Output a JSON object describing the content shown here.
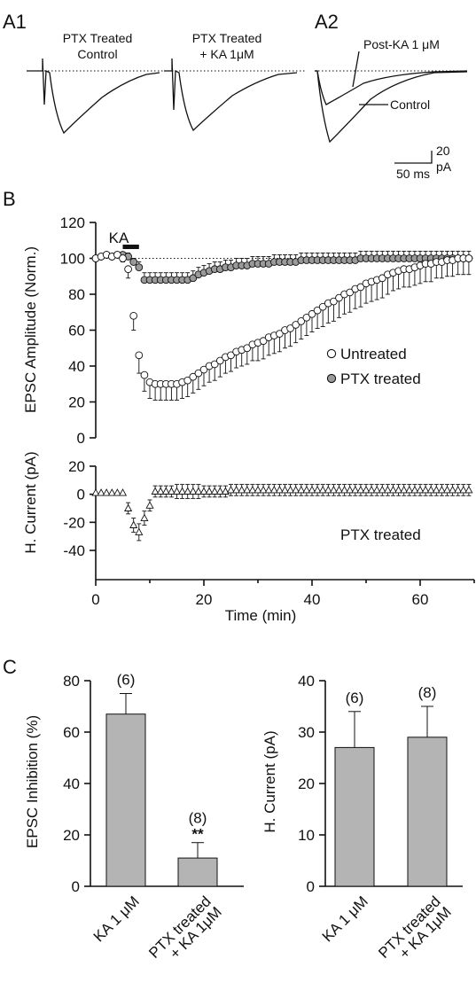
{
  "panels": {
    "a1": "A1",
    "a2": "A2",
    "b": "B",
    "c": "C"
  },
  "traces": {
    "a1_left_label": [
      "PTX Treated",
      "Control"
    ],
    "a1_right_label": [
      "PTX Treated",
      "+ KA 1μM"
    ],
    "a2_post_label": "Post-KA 1 μM",
    "a2_control_label": "Control",
    "scale_y_value": "20",
    "scale_y_unit": "pA",
    "scale_x": "50 ms"
  },
  "colors": {
    "untreated_fill": "#ffffff",
    "ptx_fill": "#9a9a9a",
    "bar_fill": "#b4b4b4",
    "stroke": "#111111"
  },
  "chart_data": [
    {
      "type": "scatter",
      "title": "",
      "xlabel": "",
      "ylabel": "EPSC Amplitude (Norm.)",
      "ylim": [
        0,
        120
      ],
      "yticks": [
        "0",
        "20",
        "40",
        "60",
        "80",
        "100",
        "120"
      ],
      "xlim": [
        0,
        70
      ],
      "reference_line": 100,
      "drug_bar": {
        "label": "KA",
        "from": 5,
        "to": 8
      },
      "legend_position": "right-middle",
      "series": [
        {
          "name": "Untreated",
          "marker": "open-circle",
          "x": [
            0,
            1,
            2,
            3,
            4,
            5,
            6,
            7,
            8,
            9,
            10,
            11,
            12,
            13,
            14,
            15,
            16,
            17,
            18,
            19,
            20,
            21,
            22,
            23,
            24,
            25,
            26,
            27,
            28,
            29,
            30,
            31,
            32,
            33,
            34,
            35,
            36,
            37,
            38,
            39,
            40,
            41,
            42,
            43,
            44,
            45,
            46,
            47,
            48,
            49,
            50,
            51,
            52,
            53,
            54,
            55,
            56,
            57,
            58,
            59,
            60,
            61,
            62,
            63,
            64,
            65,
            66,
            67,
            68,
            69
          ],
          "y": [
            100,
            101,
            102,
            101,
            102,
            100,
            94,
            68,
            46,
            35,
            31,
            30,
            30,
            30,
            30,
            30,
            31,
            32,
            34,
            36,
            38,
            40,
            41,
            43,
            45,
            46,
            48,
            49,
            50,
            52,
            53,
            54,
            56,
            57,
            58,
            60,
            61,
            63,
            65,
            67,
            69,
            71,
            73,
            75,
            76,
            78,
            80,
            81,
            83,
            84,
            86,
            87,
            88,
            89,
            91,
            92,
            93,
            94,
            94,
            95,
            96,
            97,
            97,
            98,
            98,
            99,
            99,
            100,
            100,
            100
          ],
          "error": [
            1,
            1,
            1,
            1,
            1,
            2,
            5,
            8,
            10,
            9,
            9,
            9,
            9,
            9,
            9,
            9,
            9,
            9,
            9,
            9,
            9,
            9,
            9,
            9,
            9,
            9,
            9,
            9,
            9,
            9,
            10,
            10,
            10,
            10,
            10,
            10,
            10,
            10,
            10,
            10,
            10,
            10,
            11,
            11,
            11,
            11,
            11,
            11,
            11,
            11,
            11,
            11,
            11,
            11,
            11,
            10,
            10,
            10,
            10,
            10,
            10,
            10,
            10,
            9,
            9,
            9,
            9,
            9,
            9,
            9
          ]
        },
        {
          "name": "PTX treated",
          "marker": "filled-circle",
          "x": [
            0,
            1,
            2,
            3,
            4,
            5,
            6,
            7,
            8,
            9,
            10,
            11,
            12,
            13,
            14,
            15,
            16,
            17,
            18,
            19,
            20,
            21,
            22,
            23,
            24,
            25,
            26,
            27,
            28,
            29,
            30,
            31,
            32,
            33,
            34,
            35,
            36,
            37,
            38,
            39,
            40,
            41,
            42,
            43,
            44,
            45,
            46,
            47,
            48,
            49,
            50,
            51,
            52,
            53,
            54,
            55,
            56,
            57,
            58,
            59,
            60,
            61,
            62,
            63,
            64,
            65,
            66,
            67,
            68,
            69
          ],
          "y": [
            100,
            101,
            102,
            101,
            102,
            102,
            101,
            98,
            95,
            88,
            88,
            88,
            88,
            88,
            88,
            88,
            88,
            88,
            89,
            91,
            92,
            93,
            94,
            94,
            95,
            95,
            96,
            96,
            96,
            97,
            97,
            97,
            97,
            98,
            98,
            98,
            98,
            98,
            99,
            99,
            99,
            99,
            99,
            99,
            99,
            99,
            99,
            99,
            99,
            100,
            100,
            100,
            100,
            100,
            100,
            100,
            100,
            100,
            100,
            100,
            100,
            100,
            100,
            100,
            100,
            100,
            100,
            100,
            100,
            100
          ],
          "error": [
            1,
            1,
            1,
            1,
            1,
            1,
            2,
            2,
            3,
            4,
            4,
            4,
            4,
            4,
            4,
            4,
            4,
            4,
            4,
            4,
            4,
            4,
            4,
            4,
            4,
            4,
            4,
            4,
            4,
            4,
            4,
            4,
            4,
            4,
            4,
            4,
            4,
            4,
            4,
            4,
            4,
            4,
            4,
            4,
            4,
            4,
            4,
            4,
            4,
            4,
            4,
            4,
            4,
            4,
            4,
            4,
            4,
            4,
            4,
            4,
            4,
            4,
            4,
            4,
            4,
            4,
            4,
            4,
            4,
            4
          ]
        }
      ]
    },
    {
      "type": "scatter",
      "title": "",
      "xlabel": "Time (min)",
      "ylabel": "H. Current (pA)",
      "ylim": [
        -40,
        20
      ],
      "yticks": [
        "-40",
        "-20",
        "0",
        "20"
      ],
      "xlim": [
        0,
        70
      ],
      "xticks": [
        "0",
        "20",
        "40",
        "60"
      ],
      "annotation": "PTX treated",
      "series": [
        {
          "name": "PTX treated",
          "marker": "open-triangle",
          "x": [
            0,
            1,
            2,
            3,
            4,
            5,
            6,
            7,
            8,
            9,
            10,
            11,
            12,
            13,
            14,
            15,
            16,
            17,
            18,
            19,
            20,
            21,
            22,
            23,
            24,
            25,
            26,
            27,
            28,
            29,
            30,
            31,
            32,
            33,
            34,
            35,
            36,
            37,
            38,
            39,
            40,
            41,
            42,
            43,
            44,
            45,
            46,
            47,
            48,
            49,
            50,
            51,
            52,
            53,
            54,
            55,
            56,
            57,
            58,
            59,
            60,
            61,
            62,
            63,
            64,
            65,
            66,
            67,
            68,
            69
          ],
          "y": [
            1,
            1,
            1,
            1,
            1,
            1,
            -10,
            -22,
            -27,
            -17,
            -8,
            2,
            2,
            2,
            2,
            2,
            2,
            2,
            2,
            2,
            2,
            2,
            2,
            2,
            2,
            3,
            3,
            3,
            3,
            3,
            3,
            3,
            3,
            3,
            3,
            3,
            3,
            3,
            3,
            3,
            3,
            3,
            3,
            3,
            3,
            3,
            3,
            3,
            3,
            3,
            3,
            3,
            3,
            3,
            3,
            3,
            3,
            3,
            3,
            3,
            3,
            3,
            3,
            3,
            3,
            3,
            3,
            3,
            3,
            3
          ],
          "error": [
            1,
            1,
            1,
            1,
            1,
            1,
            4,
            5,
            6,
            5,
            4,
            4,
            4,
            4,
            4,
            5,
            5,
            5,
            5,
            5,
            4,
            4,
            4,
            4,
            4,
            4,
            4,
            4,
            4,
            4,
            4,
            4,
            4,
            4,
            4,
            4,
            4,
            4,
            4,
            4,
            4,
            4,
            4,
            4,
            4,
            4,
            4,
            4,
            4,
            4,
            4,
            4,
            4,
            4,
            4,
            4,
            4,
            4,
            4,
            4,
            4,
            4,
            4,
            4,
            4,
            4,
            4,
            4,
            4,
            4
          ]
        }
      ]
    },
    {
      "type": "bar",
      "title": "",
      "xlabel": "",
      "ylabel": "EPSC Inhibition (%)",
      "ylim": [
        0,
        80
      ],
      "yticks": [
        "0",
        "20",
        "40",
        "60",
        "80"
      ],
      "categories": [
        [
          "KA 1 μM"
        ],
        [
          "PTX treated",
          "+ KA 1μM"
        ]
      ],
      "values": [
        67,
        11
      ],
      "error": [
        8,
        6
      ],
      "n_labels": [
        "(6)",
        "(8)"
      ],
      "significance": [
        "",
        "**"
      ]
    },
    {
      "type": "bar",
      "title": "",
      "xlabel": "",
      "ylabel": "H. Current (pA)",
      "ylim": [
        0,
        40
      ],
      "yticks": [
        "0",
        "10",
        "20",
        "30",
        "40"
      ],
      "categories": [
        [
          "KA 1 μM"
        ],
        [
          "PTX treated",
          "+ KA 1μM"
        ]
      ],
      "values": [
        27,
        29
      ],
      "error": [
        7,
        6
      ],
      "n_labels": [
        "(6)",
        "(8)"
      ],
      "significance": [
        "",
        ""
      ]
    }
  ]
}
